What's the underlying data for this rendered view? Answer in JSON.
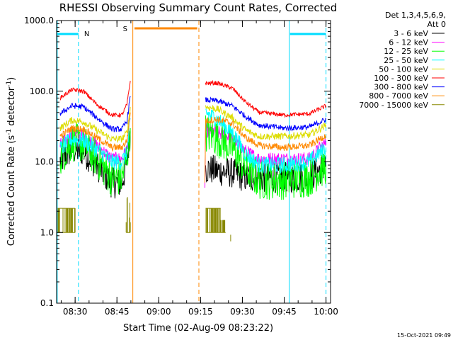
{
  "chart_data": {
    "type": "line",
    "title": "RHESSI Observing Summary Count Rates, Corrected",
    "xlabel": "Start Time (02-Aug-09 08:23:22)",
    "ylabel": "Corrected Count Rate (s-1 detector-1)",
    "ylabel_parts": {
      "a": "Corrected Count Rate (s",
      "sup1": "-1",
      "b": " detector",
      "sup2": "-1",
      "c": ")"
    },
    "yscale": "log",
    "xlim": [
      8.3894,
      10.0272
    ],
    "ylim": [
      0.1,
      1000
    ],
    "xticks": [
      {
        "value": 8.5,
        "label": "08:30"
      },
      {
        "value": 8.75,
        "label": "08:45"
      },
      {
        "value": 9.0,
        "label": "09:00"
      },
      {
        "value": 9.25,
        "label": "09:15"
      },
      {
        "value": 9.5,
        "label": "09:30"
      },
      {
        "value": 9.75,
        "label": "09:45"
      },
      {
        "value": 10.0,
        "label": "10:00"
      }
    ],
    "yticks": [
      {
        "value": 0.1,
        "label": "0.1"
      },
      {
        "value": 1,
        "label": "1.0"
      },
      {
        "value": 10,
        "label": "10.0"
      },
      {
        "value": 100,
        "label": "100.0"
      },
      {
        "value": 1000,
        "label": "1000.0"
      }
    ],
    "legend": {
      "header": [
        "Det 1,3,4,5,6,9,",
        "Att 0"
      ],
      "position": "top-right"
    },
    "timestamp": "15-Oct-2021 09:49",
    "series": [
      {
        "name": "3 - 6 keV",
        "color": "#000000",
        "noise": 0.22,
        "segments": [
          [
            [
              8.41,
              10
            ],
            [
              8.48,
              15
            ],
            [
              8.55,
              14
            ],
            [
              8.63,
              9
            ],
            [
              8.72,
              5
            ],
            [
              8.78,
              5
            ],
            [
              8.81,
              10
            ],
            [
              8.83,
              27
            ]
          ],
          [
            [
              9.28,
              8
            ],
            [
              9.35,
              7.5
            ],
            [
              9.44,
              7
            ],
            [
              9.52,
              6
            ],
            [
              9.6,
              6
            ],
            [
              9.75,
              6
            ],
            [
              9.9,
              6
            ],
            [
              10.0,
              9
            ]
          ]
        ]
      },
      {
        "name": "6 - 12 keV",
        "color": "#ff00ff",
        "noise": 0.1,
        "segments": [
          [
            [
              8.41,
              17
            ],
            [
              8.48,
              24
            ],
            [
              8.55,
              23
            ],
            [
              8.63,
              17
            ],
            [
              8.72,
              11
            ],
            [
              8.78,
              11
            ],
            [
              8.81,
              15
            ],
            [
              8.83,
              40
            ]
          ],
          [
            [
              9.276,
              5
            ],
            [
              9.28,
              28
            ],
            [
              9.35,
              26
            ],
            [
              9.44,
              22
            ],
            [
              9.52,
              14
            ],
            [
              9.6,
              11
            ],
            [
              9.75,
              11
            ],
            [
              9.9,
              11
            ],
            [
              10.0,
              19
            ]
          ]
        ]
      },
      {
        "name": "12 - 25 keV",
        "color": "#00ff00",
        "noise": 0.28,
        "segments": [
          [
            [
              8.41,
              12
            ],
            [
              8.48,
              19
            ],
            [
              8.55,
              18
            ],
            [
              8.63,
              11
            ],
            [
              8.72,
              6
            ],
            [
              8.78,
              6
            ],
            [
              8.81,
              12
            ],
            [
              8.83,
              30
            ]
          ],
          [
            [
              9.28,
              26
            ],
            [
              9.35,
              22
            ],
            [
              9.44,
              16
            ],
            [
              9.52,
              8
            ],
            [
              9.6,
              5.5
            ],
            [
              9.75,
              5.5
            ],
            [
              9.9,
              6
            ],
            [
              10.0,
              9
            ]
          ]
        ]
      },
      {
        "name": "25 - 50 keV",
        "color": "#00ffff",
        "noise": 0.12,
        "segments": [
          [
            [
              8.41,
              15
            ],
            [
              8.48,
              21
            ],
            [
              8.55,
              20
            ],
            [
              8.63,
              15
            ],
            [
              8.72,
              10
            ],
            [
              8.78,
              10
            ],
            [
              8.81,
              14
            ],
            [
              8.83,
              40
            ]
          ],
          [
            [
              9.28,
              50
            ],
            [
              9.35,
              40
            ],
            [
              9.44,
              26
            ],
            [
              9.52,
              13
            ],
            [
              9.6,
              9
            ],
            [
              9.75,
              9
            ],
            [
              9.9,
              10
            ],
            [
              10.0,
              16
            ]
          ]
        ]
      },
      {
        "name": "50 - 100 keV",
        "color": "#dddd00",
        "noise": 0.05,
        "segments": [
          [
            [
              8.41,
              30
            ],
            [
              8.48,
              39
            ],
            [
              8.55,
              37
            ],
            [
              8.63,
              28
            ],
            [
              8.72,
              21
            ],
            [
              8.78,
              21
            ],
            [
              8.81,
              26
            ],
            [
              8.83,
              60
            ]
          ],
          [
            [
              9.28,
              60
            ],
            [
              9.35,
              56
            ],
            [
              9.44,
              42
            ],
            [
              9.52,
              28
            ],
            [
              9.6,
              23
            ],
            [
              9.75,
              23
            ],
            [
              9.9,
              24
            ],
            [
              10.0,
              33
            ]
          ]
        ]
      },
      {
        "name": "100 - 300 keV",
        "color": "#ff0000",
        "noise": 0.03,
        "segments": [
          [
            [
              8.41,
              80
            ],
            [
              8.48,
              105
            ],
            [
              8.55,
              100
            ],
            [
              8.63,
              65
            ],
            [
              8.72,
              46
            ],
            [
              8.78,
              46
            ],
            [
              8.81,
              65
            ],
            [
              8.83,
              140
            ]
          ],
          [
            [
              9.28,
              130
            ],
            [
              9.35,
              130
            ],
            [
              9.44,
              110
            ],
            [
              9.52,
              70
            ],
            [
              9.6,
              50
            ],
            [
              9.75,
              46
            ],
            [
              9.9,
              48
            ],
            [
              10.0,
              62
            ]
          ]
        ]
      },
      {
        "name": "300 - 800 keV",
        "color": "#0000ff",
        "noise": 0.04,
        "segments": [
          [
            [
              8.41,
              48
            ],
            [
              8.48,
              62
            ],
            [
              8.55,
              60
            ],
            [
              8.63,
              42
            ],
            [
              8.72,
              29
            ],
            [
              8.78,
              29
            ],
            [
              8.81,
              38
            ],
            [
              8.83,
              85
            ]
          ],
          [
            [
              9.28,
              75
            ],
            [
              9.35,
              73
            ],
            [
              9.44,
              62
            ],
            [
              9.52,
              44
            ],
            [
              9.6,
              33
            ],
            [
              9.75,
              30
            ],
            [
              9.9,
              31
            ],
            [
              10.0,
              40
            ]
          ]
        ]
      },
      {
        "name": "800 - 7000 keV",
        "color": "#ff8800",
        "noise": 0.05,
        "segments": [
          [
            [
              8.41,
              23
            ],
            [
              8.48,
              30
            ],
            [
              8.55,
              29
            ],
            [
              8.63,
              22
            ],
            [
              8.72,
              16
            ],
            [
              8.78,
              16
            ],
            [
              8.81,
              20
            ],
            [
              8.83,
              50
            ]
          ],
          [
            [
              9.276,
              5
            ],
            [
              9.28,
              38
            ],
            [
              9.35,
              40
            ],
            [
              9.44,
              35
            ],
            [
              9.52,
              22
            ],
            [
              9.6,
              17
            ],
            [
              9.75,
              16
            ],
            [
              9.9,
              17
            ],
            [
              10.0,
              24
            ]
          ]
        ]
      },
      {
        "name": "7000 - 15000 keV",
        "color": "#888800",
        "noise": 0,
        "segments": []
      }
    ],
    "olive_spikes": [
      {
        "x1": 8.395,
        "x2": 8.5,
        "hi": 2.2
      },
      {
        "x1": 8.805,
        "x2": 8.83,
        "hi": 3.2
      },
      {
        "x1": 9.28,
        "x2": 9.37,
        "hi": 2.2
      },
      {
        "x1": 9.37,
        "x2": 9.4,
        "hi": 1.5
      }
    ],
    "events": {
      "night_label": "N",
      "saa_label": "S",
      "night_bars": [
        [
          8.395,
          8.52
        ],
        [
          9.785,
          10.0
        ]
      ],
      "night_lines_solid": [
        8.393,
        9.78
      ],
      "night_lines_dashed": [
        8.52,
        10.0
      ],
      "saa_bar": [
        8.855,
        9.23
      ],
      "saa_line_solid": 8.845,
      "saa_line_dashed": 9.24
    }
  }
}
